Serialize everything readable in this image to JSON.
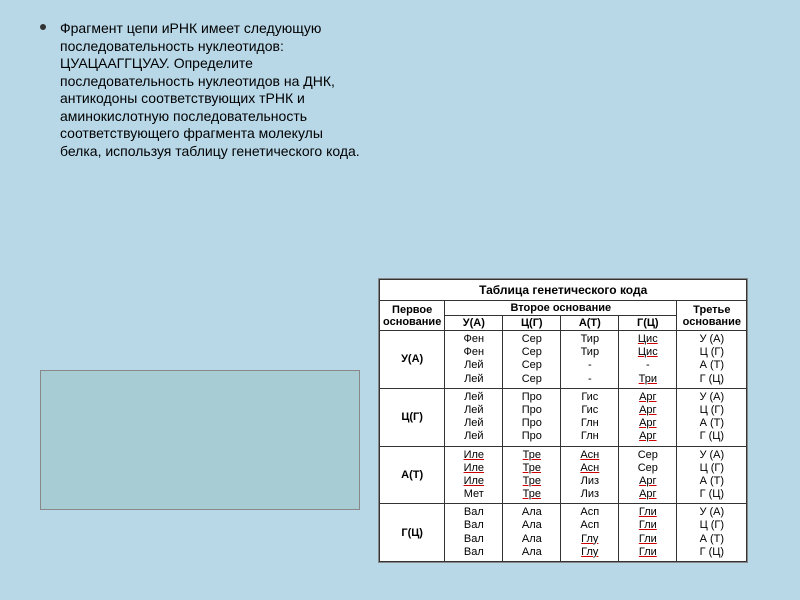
{
  "task": {
    "text": "Фрагмент цепи иРНК имеет следующую последовательность нуклеотидов: ЦУАЦААГГЦУАУ. Определите последовательность нуклеотидов на ДНК, антикодоны соответствующих тРНК и аминокислотную последовательность соответствующего фрагмента молекулы белка, используя таблицу генетического кода."
  },
  "table": {
    "title": "Таблица генетического кода",
    "headers": {
      "first": "Первое основание",
      "second": "Второе основание",
      "third": "Третье основание",
      "cols": [
        "У(А)",
        "Ц(Г)",
        "А(Т)",
        "Г(Ц)"
      ]
    },
    "row_headers": [
      "У(А)",
      "Ц(Г)",
      "А(Т)",
      "Г(Ц)"
    ],
    "third_col": [
      "У (А)",
      "Ц (Г)",
      "А (Т)",
      "Г (Ц)"
    ],
    "cells": {
      "r0": [
        [
          "Фен",
          "Фен",
          "Лей",
          "Лей"
        ],
        [
          "Сер",
          "Сер",
          "Сер",
          "Сер"
        ],
        [
          "Тир",
          "Тир",
          "-",
          "-"
        ],
        [
          "Цис",
          "Цис",
          "-",
          "Три"
        ]
      ],
      "r1": [
        [
          "Лей",
          "Лей",
          "Лей",
          "Лей"
        ],
        [
          "Про",
          "Про",
          "Про",
          "Про"
        ],
        [
          "Гис",
          "Гис",
          "Глн",
          "Глн"
        ],
        [
          "Арг",
          "Арг",
          "Арг",
          "Арг"
        ]
      ],
      "r2": [
        [
          "Иле",
          "Иле",
          "Иле",
          "Мет"
        ],
        [
          "Тре",
          "Тре",
          "Тре",
          "Тре"
        ],
        [
          "Асн",
          "Асн",
          "Лиз",
          "Лиз"
        ],
        [
          "Сер",
          "Сер",
          "Арг",
          "Арг"
        ]
      ],
      "r3": [
        [
          "Вал",
          "Вал",
          "Вал",
          "Вал"
        ],
        [
          "Ала",
          "Ала",
          "Ала",
          "Ала"
        ],
        [
          "Асп",
          "Асп",
          "Глу",
          "Глу"
        ],
        [
          "Гли",
          "Гли",
          "Гли",
          "Гли"
        ]
      ]
    }
  },
  "colors": {
    "page_bg": "#b8d8e8",
    "answer_bg": "#a8ccd4",
    "border": "#333333",
    "underline": "#cc0000"
  }
}
